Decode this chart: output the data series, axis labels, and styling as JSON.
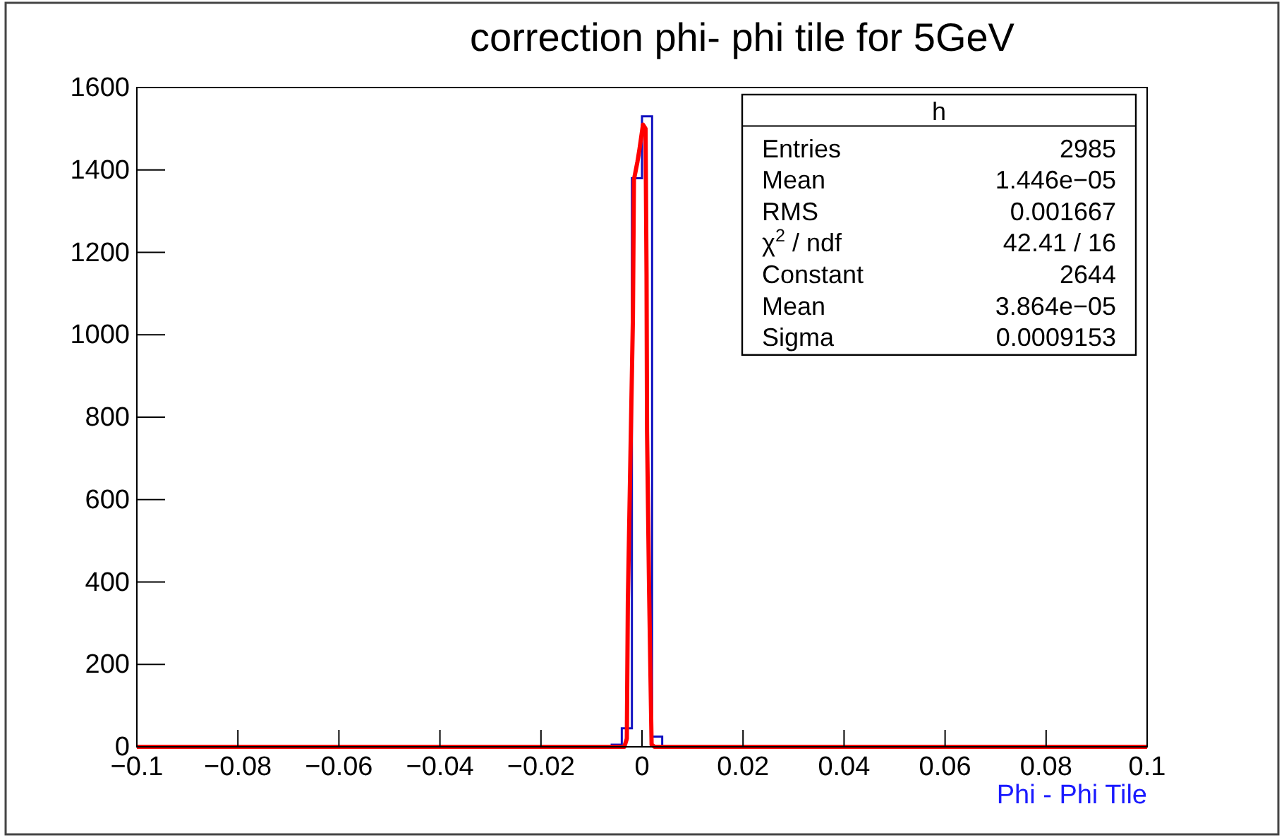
{
  "chart_data": {
    "type": "histogram",
    "title": "correction phi- phi tile for 5GeV",
    "xlabel": "Phi - Phi Tile",
    "bins": [
      -0.006,
      -0.004,
      -0.002,
      0,
      0.002,
      0.004
    ],
    "values": [
      5,
      45,
      1380,
      1530,
      25
    ],
    "color": "#1010c0",
    "series": [
      {
        "type": "line",
        "color": "#ff0000",
        "x": [
          -0.1,
          -0.0035,
          -0.003,
          -0.0028,
          -0.0023,
          -0.0018,
          -0.0016,
          -0.0009,
          -0.0005,
          0.0002,
          0.0007,
          0.0009,
          0.001,
          0.0014,
          0.0019,
          0.0025,
          0.1
        ],
        "values": [
          0,
          0,
          20,
          352,
          697,
          1041,
          1376,
          1420,
          1450,
          1510,
          1500,
          1145,
          765,
          386,
          5,
          0,
          0
        ]
      }
    ],
    "xlim": [
      -0.1,
      0.1
    ],
    "xticks": [
      -0.1,
      -0.08,
      -0.06,
      -0.04,
      -0.02,
      0,
      0.02,
      0.04,
      0.06,
      0.08,
      0.1
    ],
    "ylim": [
      0,
      1600
    ],
    "yticks": [
      0,
      200,
      400,
      600,
      800,
      1000,
      1200,
      1400,
      1600
    ],
    "annotations": [
      "h",
      "Entries\t2985",
      "Mean\t1.446e−05",
      "RMS\t0.001667",
      "χ$^{2}$ / ndf\t42.41 / 16",
      "Constant\t2644",
      "Mean\t3.864e−05",
      "Sigma\t0.0009153"
    ],
    "grid": false
  }
}
